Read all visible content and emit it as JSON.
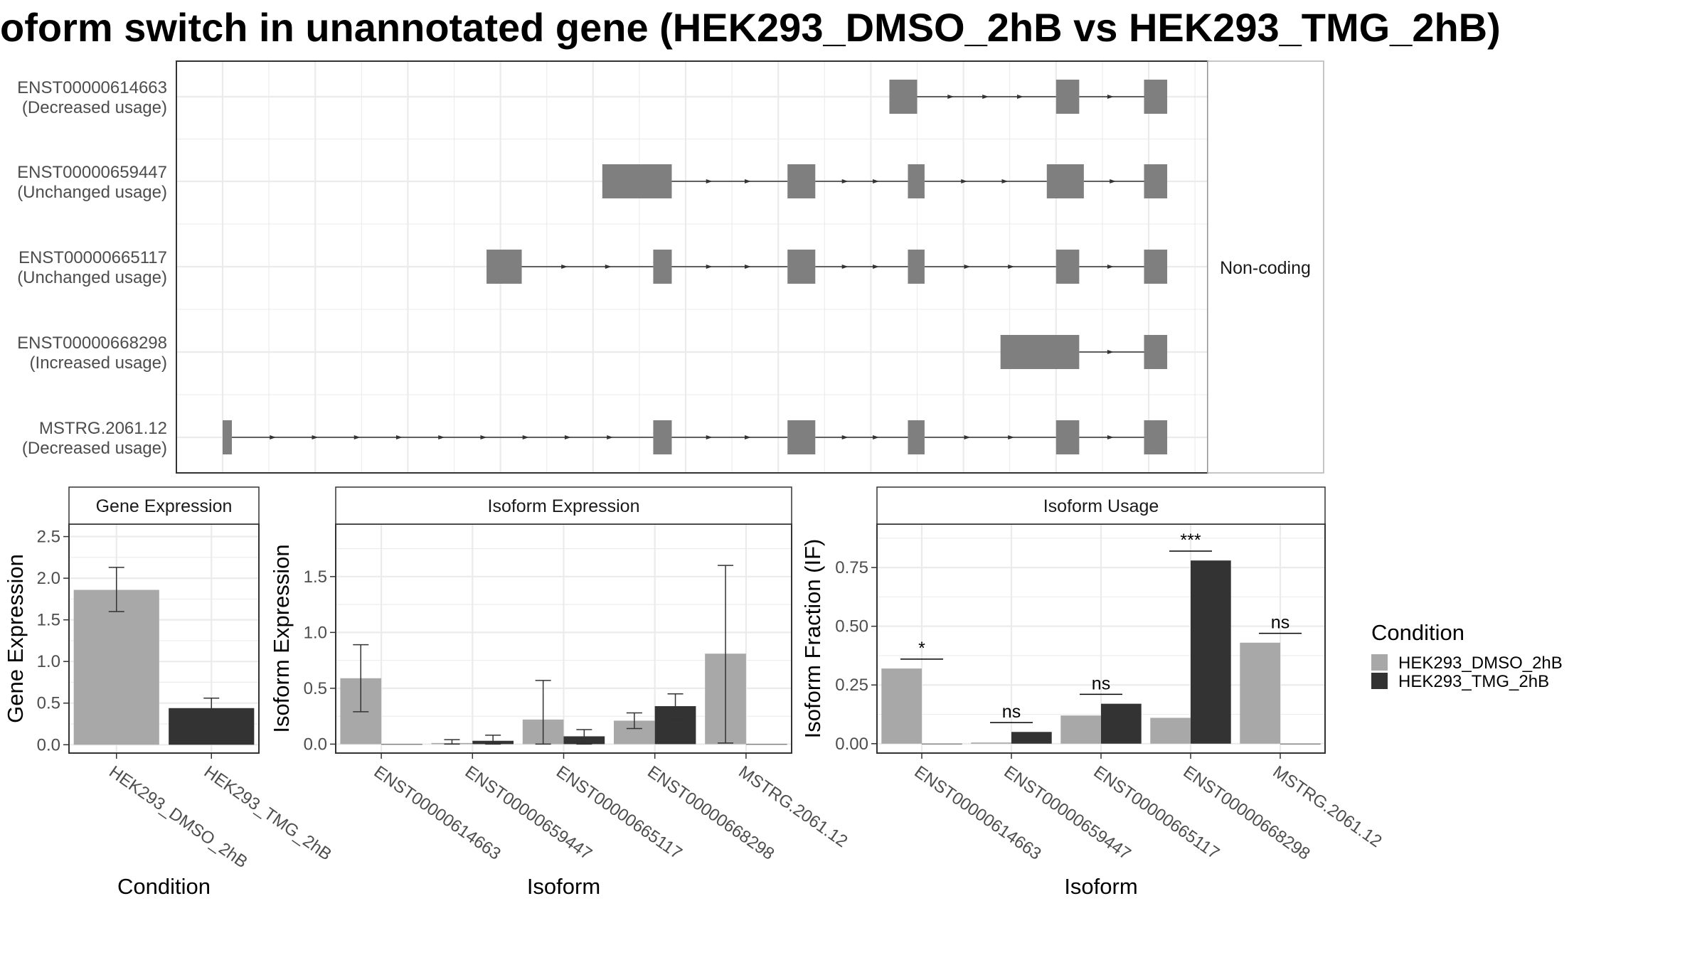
{
  "title": "oform switch in unannotated gene (HEK293_DMSO_2hB vs HEK293_TMG_2hB)",
  "colors": {
    "dmso": "#a8a8a8",
    "tmg": "#333333",
    "exon": "#7f7f7f",
    "grid": "#ebebeb",
    "frame": "#333333",
    "strip_border": "#b3b3b3"
  },
  "legend": {
    "title": "Condition",
    "items": [
      {
        "label": "HEK293_DMSO_2hB",
        "color": "#a8a8a8"
      },
      {
        "label": "HEK293_TMG_2hB",
        "color": "#333333"
      }
    ],
    "placement": "right"
  },
  "chart_data": [
    {
      "type": "isoform_structure",
      "strip_label": "Non-coding",
      "xlim": [
        0,
        100
      ],
      "grid": true,
      "transcripts": [
        {
          "id": "ENST00000614663",
          "usage": "(Decreased usage)",
          "exons": [
            [
              72.0,
              75.0
            ],
            [
              90.0,
              92.5
            ],
            [
              99.5,
              102.0
            ]
          ]
        },
        {
          "id": "ENST00000659447",
          "usage": "(Unchanged usage)",
          "exons": [
            [
              41.0,
              48.5
            ],
            [
              61.0,
              64.0
            ],
            [
              74.0,
              75.8
            ],
            [
              89.0,
              93.0
            ],
            [
              99.5,
              102.0
            ]
          ]
        },
        {
          "id": "ENST00000665117",
          "usage": "(Unchanged usage)",
          "exons": [
            [
              28.5,
              32.3
            ],
            [
              46.5,
              48.5
            ],
            [
              61.0,
              64.0
            ],
            [
              74.0,
              75.8
            ],
            [
              90.0,
              92.5
            ],
            [
              99.5,
              102.0
            ]
          ]
        },
        {
          "id": "ENST00000668298",
          "usage": "(Increased usage)",
          "exons": [
            [
              84.0,
              92.5
            ],
            [
              99.5,
              102.0
            ]
          ]
        },
        {
          "id": "MSTRG.2061.12",
          "usage": "(Decreased usage)",
          "exons": [
            [
              0.0,
              1.0
            ],
            [
              46.5,
              48.5
            ],
            [
              61.0,
              64.0
            ],
            [
              74.0,
              75.8
            ],
            [
              90.0,
              92.5
            ],
            [
              99.5,
              102.0
            ]
          ]
        }
      ]
    },
    {
      "type": "bar",
      "strip_label": "Gene Expression",
      "ylabel": "Gene Expression",
      "xlabel": "Condition",
      "ylim": [
        -0.1,
        2.65
      ],
      "yticks": [
        0.0,
        0.5,
        1.0,
        1.5,
        2.0,
        2.5
      ],
      "ytick_labels": [
        "0.0",
        "0.5",
        "1.0",
        "1.5",
        "2.0",
        "2.5"
      ],
      "categories": [
        "HEK293_DMSO_2hB",
        "HEK293_TMG_2hB"
      ],
      "series": [
        {
          "name": "HEK293_DMSO_2hB",
          "values": [
            1.86,
            null
          ],
          "errors": [
            [
              1.6,
              2.13
            ],
            null
          ]
        },
        {
          "name": "HEK293_TMG_2hB",
          "values": [
            null,
            0.44
          ],
          "errors": [
            null,
            [
              0.33,
              0.56
            ]
          ]
        }
      ]
    },
    {
      "type": "bar",
      "strip_label": "Isoform Expression",
      "ylabel": "Isoform Expression",
      "xlabel": "Isoform",
      "ylim": [
        -0.08,
        1.97
      ],
      "yticks": [
        0.0,
        0.5,
        1.0,
        1.5
      ],
      "ytick_labels": [
        "0.0",
        "0.5",
        "1.0",
        "1.5"
      ],
      "categories": [
        "ENST00000614663",
        "ENST00000659447",
        "ENST00000665117",
        "ENST00000668298",
        "MSTRG.2061.12"
      ],
      "series": [
        {
          "name": "HEK293_DMSO_2hB",
          "values": [
            0.59,
            0.01,
            0.22,
            0.21,
            0.81
          ],
          "errors": [
            [
              0.29,
              0.89
            ],
            [
              0.0,
              0.04
            ],
            [
              0.0,
              0.57
            ],
            [
              0.14,
              0.28
            ],
            [
              0.01,
              1.6
            ]
          ]
        },
        {
          "name": "HEK293_TMG_2hB",
          "values": [
            0.0,
            0.03,
            0.07,
            0.34,
            0.0
          ],
          "errors": [
            null,
            [
              0.0,
              0.08
            ],
            [
              0.0,
              0.13
            ],
            [
              0.22,
              0.45
            ],
            null
          ]
        }
      ]
    },
    {
      "type": "bar",
      "strip_label": "Isoform Usage",
      "ylabel": "Isoform Fraction (IF)",
      "xlabel": "Isoform",
      "ylim": [
        -0.04,
        0.935
      ],
      "yticks": [
        0.0,
        0.25,
        0.5,
        0.75
      ],
      "ytick_labels": [
        "0.00",
        "0.25",
        "0.50",
        "0.75"
      ],
      "categories": [
        "ENST00000614663",
        "ENST00000659447",
        "ENST00000665117",
        "ENST00000668298",
        "MSTRG.2061.12"
      ],
      "series": [
        {
          "name": "HEK293_DMSO_2hB",
          "values": [
            0.32,
            0.005,
            0.12,
            0.11,
            0.43
          ]
        },
        {
          "name": "HEK293_TMG_2hB",
          "values": [
            0.0,
            0.05,
            0.17,
            0.78,
            0.0
          ]
        }
      ],
      "significance": [
        {
          "category": 0,
          "label": "*",
          "y": 0.36
        },
        {
          "category": 1,
          "label": "ns",
          "y": 0.09
        },
        {
          "category": 2,
          "label": "ns",
          "y": 0.21
        },
        {
          "category": 3,
          "label": "***",
          "y": 0.82
        },
        {
          "category": 4,
          "label": "ns",
          "y": 0.47
        }
      ]
    }
  ]
}
